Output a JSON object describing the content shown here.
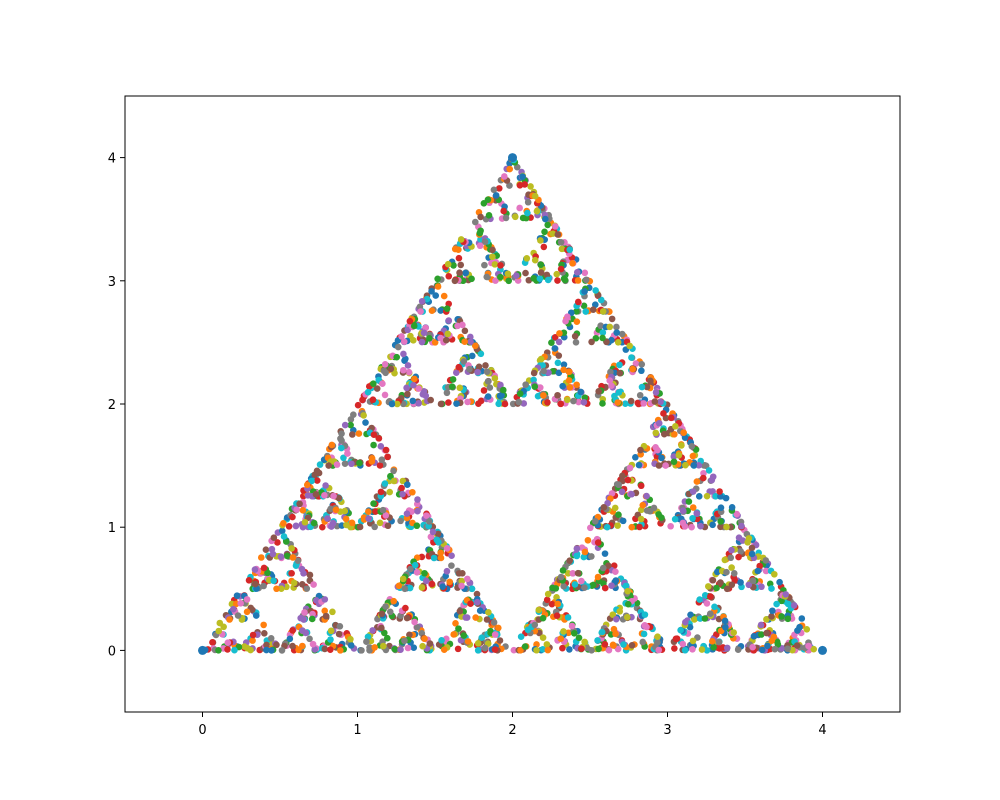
{
  "chart_data": {
    "type": "scatter",
    "title": "",
    "xlabel": "",
    "ylabel": "",
    "xlim": [
      -0.5,
      4.5
    ],
    "ylim": [
      -0.5,
      4.5
    ],
    "grid": false,
    "legend": "none",
    "x_ticks": [
      0,
      1,
      2,
      3,
      4
    ],
    "y_ticks": [
      0,
      1,
      2,
      3,
      4
    ],
    "x_tick_labels": [
      "0",
      "1",
      "2",
      "3",
      "4"
    ],
    "y_tick_labels": [
      "0",
      "1",
      "2",
      "3",
      "4"
    ],
    "vertices": [
      {
        "x": 0,
        "y": 0
      },
      {
        "x": 4,
        "y": 0
      },
      {
        "x": 2,
        "y": 4
      }
    ],
    "point_count": 2500,
    "colors": [
      "#1f77b4",
      "#ff7f0e",
      "#2ca02c",
      "#d62728",
      "#9467bd",
      "#8c564b",
      "#e377c2",
      "#7f7f7f",
      "#bcbd22",
      "#17becf"
    ]
  }
}
